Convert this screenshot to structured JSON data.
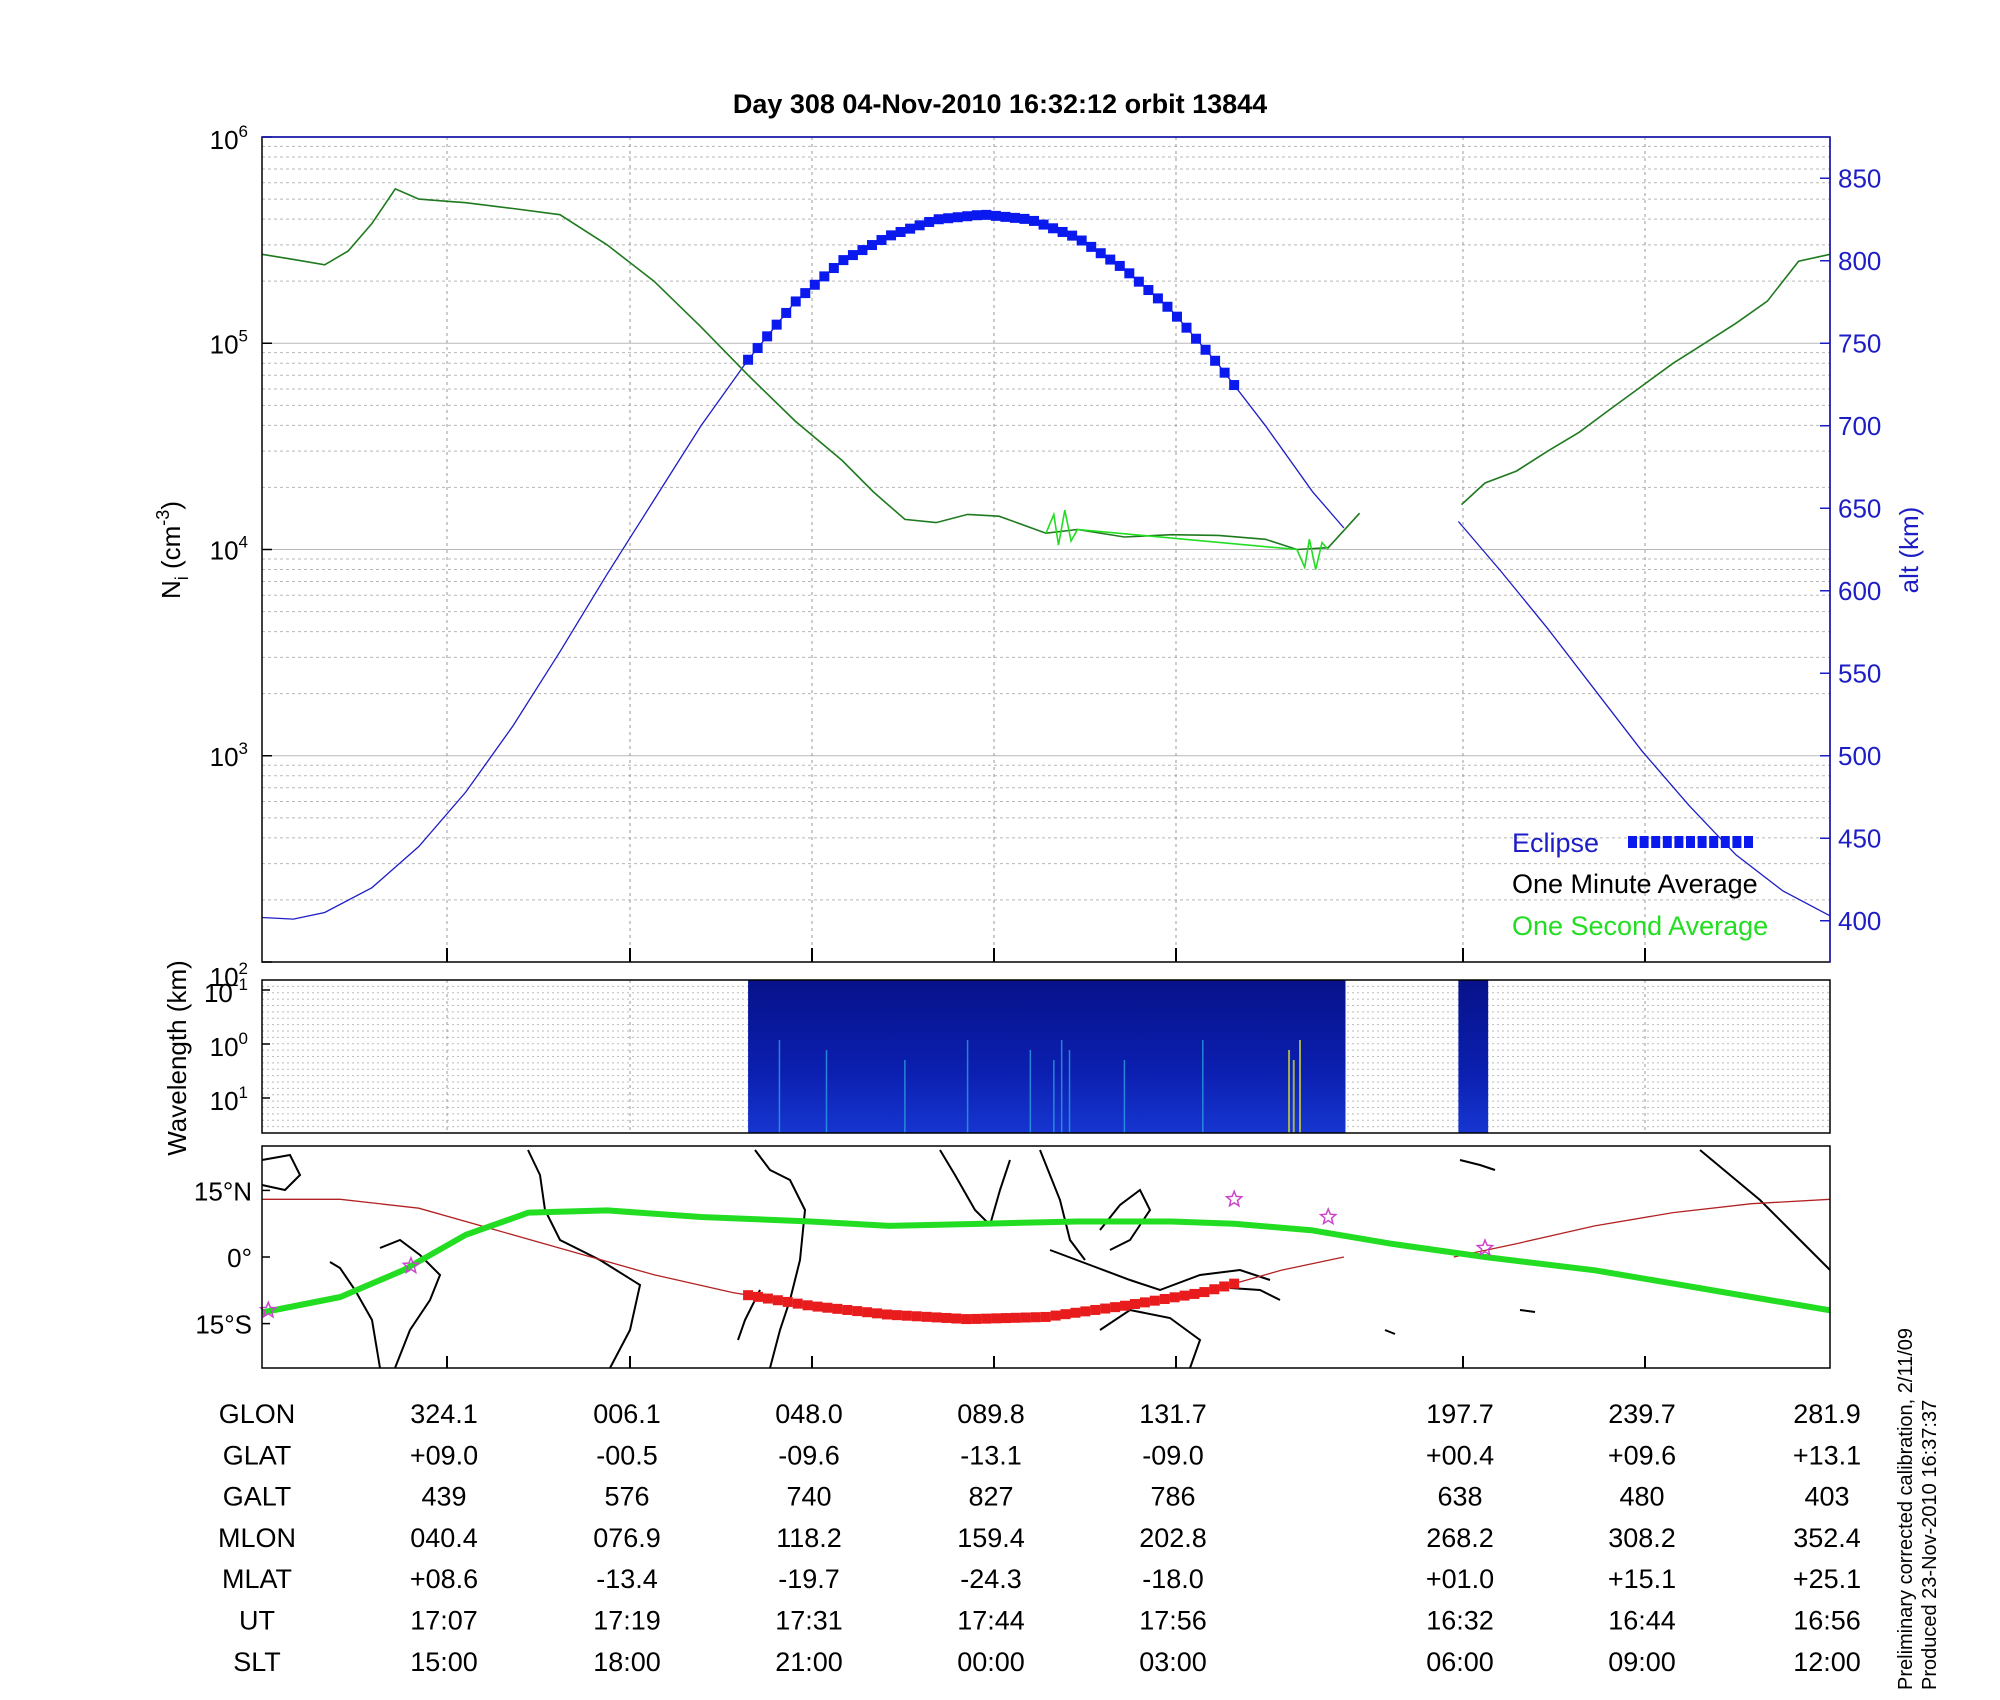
{
  "title": "Day 308  04-Nov-2010 16:32:12   orbit 13844",
  "side_note": [
    "Preliminary corrected calibration, 2/11/09",
    "Produced 23-Nov-2010 16:37:37"
  ],
  "colors": {
    "ni_one_minute": "#1f7a1f",
    "ni_one_second": "#22dd22",
    "altitude": "#1d1dc6",
    "eclipse": "#0a1aee",
    "track": "#b22222",
    "track_eclipse": "#e81c1c",
    "mag_equator": "#22dd22",
    "stars": "#cc44cc",
    "spectrogram": "#0a1a9e"
  },
  "chart_data": [
    {
      "type": "line",
      "ylabel": "N",
      "ylabel_sub": "i",
      "ylabel_unit": "(cm",
      "ylabel_exp": "-3",
      "ylabel_close": ")",
      "y2label": "alt (km)",
      "yscale": "log",
      "ylim": [
        100,
        1000000
      ],
      "yticks": [
        {
          "base": "10",
          "exp": "2",
          "v": 100
        },
        {
          "base": "10",
          "exp": "3",
          "v": 1000
        },
        {
          "base": "10",
          "exp": "4",
          "v": 10000
        },
        {
          "base": "10",
          "exp": "5",
          "v": 100000
        },
        {
          "base": "10",
          "exp": "6",
          "v": 1000000
        }
      ],
      "y2lim": [
        375,
        875
      ],
      "y2ticks": [
        "400",
        "450",
        "500",
        "550",
        "600",
        "650",
        "700",
        "750",
        "800",
        "850"
      ],
      "xlim": [
        0,
        1
      ],
      "grid": true,
      "legend": [
        "Eclipse",
        "One Minute Average",
        "One Second Average"
      ],
      "legend_position": "bottom-right",
      "series": [
        {
          "name": "One Minute Average",
          "x": [
            0,
            0.02,
            0.04,
            0.055,
            0.07,
            0.085,
            0.1,
            0.115,
            0.13,
            0.16,
            0.19,
            0.22,
            0.25,
            0.28,
            0.31,
            0.34,
            0.37,
            0.39,
            0.41,
            0.43,
            0.45,
            0.47,
            0.5,
            0.52,
            0.55,
            0.58,
            0.61,
            0.64,
            0.66,
            0.68,
            0.7,
            0.72,
            0.735,
            0.75,
            0.765,
            0.78,
            0.79
          ],
          "y": [
            270000,
            255000,
            240000,
            280000,
            380000,
            560000,
            500000,
            490000,
            480000,
            450000,
            420000,
            300000,
            200000,
            120000,
            70000,
            42000,
            27000,
            19000,
            14000,
            13500,
            14800,
            14500,
            12000,
            12500,
            11500,
            11800,
            11700,
            11200,
            10000,
            10200,
            15000,
            null,
            null,
            null,
            null,
            null,
            null
          ]
        },
        {
          "name": "One Minute Average (ascending)",
          "x": [
            0.765,
            0.78,
            0.8,
            0.82,
            0.84,
            0.86,
            0.88,
            0.9,
            0.92,
            0.94,
            0.96,
            0.98,
            1.0
          ],
          "y": [
            16500,
            21000,
            24000,
            30000,
            37000,
            48000,
            62000,
            80000,
            100000,
            125000,
            160000,
            250000,
            270000
          ]
        },
        {
          "name": "One Second Average",
          "x": [
            0.5,
            0.505,
            0.508,
            0.512,
            0.516,
            0.52,
            0.66,
            0.665,
            0.668,
            0.672,
            0.676,
            0.68
          ],
          "y": [
            12000,
            14800,
            10500,
            15500,
            11000,
            12500,
            10000,
            8200,
            11200,
            8000,
            10800,
            10000
          ]
        },
        {
          "name": "alt (km)",
          "axis": "y2",
          "x": [
            0,
            0.02,
            0.04,
            0.07,
            0.1,
            0.13,
            0.16,
            0.19,
            0.22,
            0.25,
            0.28,
            0.31,
            0.34,
            0.37,
            0.4,
            0.43,
            0.46,
            0.49,
            0.52,
            0.55,
            0.58,
            0.61,
            0.64,
            0.67,
            0.69
          ],
          "y": [
            402,
            401,
            405,
            420,
            445,
            478,
            518,
            563,
            610,
            655,
            700,
            740,
            775,
            800,
            815,
            825,
            828,
            825,
            814,
            795,
            770,
            737,
            700,
            660,
            638
          ]
        },
        {
          "name": "alt (km) (after gap)",
          "axis": "y2",
          "x": [
            0.763,
            0.79,
            0.82,
            0.85,
            0.88,
            0.91,
            0.94,
            0.97,
            1.0
          ],
          "y": [
            642,
            612,
            577,
            540,
            503,
            470,
            440,
            418,
            403
          ]
        },
        {
          "name": "Eclipse",
          "axis": "y2",
          "x_start": 0.31,
          "x_end": 0.62
        }
      ]
    },
    {
      "type": "heatmap",
      "ylabel": "Wavelength (km)",
      "yticks": [
        {
          "base": "10",
          "exp": "-1"
        },
        {
          "base": "10",
          "exp": "0"
        },
        {
          "base": "10",
          "exp": "1"
        }
      ],
      "segments": [
        {
          "x_start": 0.31,
          "x_end": 0.691
        },
        {
          "x_start": 0.763,
          "x_end": 0.782
        }
      ]
    },
    {
      "type": "line",
      "ytick_labels": [
        "15°N",
        "0°",
        "15°S"
      ],
      "ytick_values": [
        15,
        0,
        -15
      ],
      "ylim": [
        -25,
        25
      ],
      "track": {
        "x": [
          0,
          0.05,
          0.1,
          0.15,
          0.2,
          0.25,
          0.3,
          0.35,
          0.4,
          0.45,
          0.5,
          0.55,
          0.6,
          0.65,
          0.69,
          0.72,
          0.76,
          0.8,
          0.85,
          0.9,
          0.95,
          1.0
        ],
        "y": [
          13,
          13,
          11,
          6,
          1,
          -4,
          -8,
          -11,
          -13,
          -14,
          -13.5,
          -11,
          -8,
          -3,
          0,
          null,
          0,
          3,
          7,
          10,
          12,
          13
        ]
      },
      "mag_equator": {
        "x": [
          0,
          0.05,
          0.09,
          0.13,
          0.17,
          0.22,
          0.28,
          0.35,
          0.4,
          0.46,
          0.52,
          0.58,
          0.62,
          0.67,
          0.72,
          0.78,
          0.85,
          0.9,
          0.95,
          1.0
        ],
        "y": [
          -12.5,
          -9,
          -3,
          5,
          10,
          10.5,
          9,
          8,
          7,
          7.5,
          8,
          8,
          7.5,
          6,
          3,
          0,
          -3,
          -6,
          -9,
          -12
        ]
      },
      "stars": [
        {
          "x": 0.004,
          "y": -12
        },
        {
          "x": 0.095,
          "y": -2
        },
        {
          "x": 0.62,
          "y": 13
        },
        {
          "x": 0.68,
          "y": 9
        },
        {
          "x": 0.78,
          "y": 2
        }
      ]
    }
  ],
  "table": {
    "rows": [
      {
        "label": "GLON",
        "values": [
          "324.1",
          "006.1",
          "048.0",
          "089.8",
          "131.7",
          "197.7",
          "239.7",
          "281.9"
        ]
      },
      {
        "label": "GLAT",
        "values": [
          "+09.0",
          "-00.5",
          "-09.6",
          "-13.1",
          "-09.0",
          "+00.4",
          "+09.6",
          "+13.1"
        ]
      },
      {
        "label": "GALT",
        "values": [
          "439",
          "576",
          "740",
          "827",
          "786",
          "638",
          "480",
          "403"
        ]
      },
      {
        "label": "MLON",
        "values": [
          "040.4",
          "076.9",
          "118.2",
          "159.4",
          "202.8",
          "268.2",
          "308.2",
          "352.4"
        ]
      },
      {
        "label": "MLAT",
        "values": [
          "+08.6",
          "-13.4",
          "-19.7",
          "-24.3",
          "-18.0",
          "+01.0",
          "+15.1",
          "+25.1"
        ]
      },
      {
        "label": "UT",
        "values": [
          "17:07",
          "17:19",
          "17:31",
          "17:44",
          "17:56",
          "16:32",
          "16:44",
          "16:56"
        ]
      },
      {
        "label": "SLT",
        "values": [
          "15:00",
          "18:00",
          "21:00",
          "00:00",
          "03:00",
          "06:00",
          "09:00",
          "12:00"
        ]
      }
    ]
  }
}
